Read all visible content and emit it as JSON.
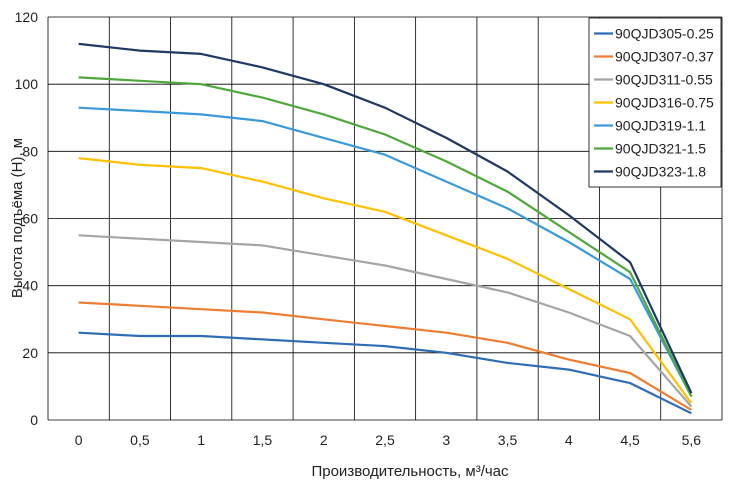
{
  "chart_data": {
    "type": "line",
    "x_labels": [
      "0",
      "0,5",
      "1",
      "1,5",
      "2",
      "2,5",
      "3",
      "3,5",
      "4",
      "4,5",
      "5,6"
    ],
    "x": [
      0,
      0.5,
      1,
      1.5,
      2,
      2.5,
      3,
      3.5,
      4,
      4.5,
      5.6
    ],
    "xlabel": "Производительность, м³/час",
    "ylabel": "Высота подъёма (Н), м",
    "ylim": [
      0,
      120
    ],
    "yticks": [
      0,
      20,
      40,
      60,
      80,
      100,
      120
    ],
    "y_tick_labels": [
      "0",
      "20",
      "40",
      "60",
      "80",
      "100",
      "120"
    ],
    "grid": true,
    "legend_position": "top-right",
    "series": [
      {
        "name": "90QJD305-0.25",
        "color": "#2e6db4",
        "values": [
          26,
          25,
          25,
          24,
          23,
          22,
          20,
          17,
          15,
          11,
          2
        ]
      },
      {
        "name": "90QJD307-0.37",
        "color": "#ed7d31",
        "values": [
          35,
          34,
          33,
          32,
          30,
          28,
          26,
          23,
          18,
          14,
          3
        ]
      },
      {
        "name": "90QJD311-0.55",
        "color": "#a5a5a5",
        "values": [
          55,
          54,
          53,
          52,
          49,
          46,
          42,
          38,
          32,
          25,
          4
        ]
      },
      {
        "name": "90QJD316-0.75",
        "color": "#ffc000",
        "values": [
          78,
          76,
          75,
          71,
          66,
          62,
          55,
          48,
          39,
          30,
          5
        ]
      },
      {
        "name": "90QJD319-1.1",
        "color": "#3a9ad9",
        "values": [
          93,
          92,
          91,
          89,
          84,
          79,
          71,
          63,
          53,
          42,
          7
        ]
      },
      {
        "name": "90QJD321-1.5",
        "color": "#4ea83c",
        "values": [
          102,
          101,
          100,
          96,
          91,
          85,
          77,
          68,
          56,
          44,
          7
        ]
      },
      {
        "name": "90QJD323-1.8",
        "color": "#1f3864",
        "values": [
          112,
          110,
          109,
          105,
          100,
          93,
          84,
          74,
          61,
          47,
          8
        ]
      }
    ]
  }
}
